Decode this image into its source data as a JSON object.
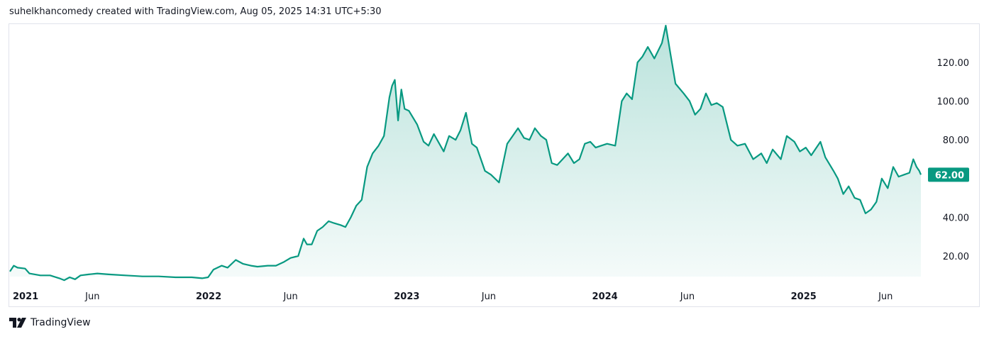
{
  "header": {
    "text": "suhelkhancomedy created with TradingView.com, Aug 05, 2025 14:31 UTC+5:30"
  },
  "footer": {
    "brand": "TradingView",
    "logo_icon": "tradingview-logo-icon"
  },
  "colors": {
    "line": "#089981",
    "fill_top": "#089981",
    "price_tag_bg": "#089981",
    "frame": "#e0e3eb"
  },
  "chart_data": {
    "type": "area",
    "title": "",
    "xlabel": "",
    "ylabel": "",
    "grid": false,
    "y_axis_position": "right",
    "ylim": [
      7,
      141
    ],
    "y_ticks": [
      "120.00",
      "100.00",
      "80.00",
      "40.00",
      "20.00"
    ],
    "x_range": [
      "2020-12-31",
      "2025-08-05"
    ],
    "x_ticks": [
      {
        "label": "2021",
        "date": "2021-01-01",
        "bold": true
      },
      {
        "label": "Jun",
        "date": "2021-06-01",
        "bold": false
      },
      {
        "label": "2022",
        "date": "2022-01-01",
        "bold": true
      },
      {
        "label": "Jun",
        "date": "2022-06-01",
        "bold": false
      },
      {
        "label": "2023",
        "date": "2023-01-01",
        "bold": true
      },
      {
        "label": "Jun",
        "date": "2023-06-01",
        "bold": false
      },
      {
        "label": "2024",
        "date": "2024-01-01",
        "bold": true
      },
      {
        "label": "Jun",
        "date": "2024-06-01",
        "bold": false
      },
      {
        "label": "2025",
        "date": "2025-01-01",
        "bold": true
      },
      {
        "label": "Jun",
        "date": "2025-06-01",
        "bold": false
      }
    ],
    "last_price_label": "62.00",
    "series": [
      {
        "values": [
          [
            "2020-12-31",
            12
          ],
          [
            "2021-01-07",
            15
          ],
          [
            "2021-01-14",
            14
          ],
          [
            "2021-01-28",
            13.5
          ],
          [
            "2021-02-05",
            11
          ],
          [
            "2021-02-25",
            10
          ],
          [
            "2021-03-15",
            10
          ],
          [
            "2021-04-01",
            8.5
          ],
          [
            "2021-04-10",
            7.5
          ],
          [
            "2021-04-20",
            9
          ],
          [
            "2021-04-30",
            8
          ],
          [
            "2021-05-10",
            10
          ],
          [
            "2021-05-25",
            10.5
          ],
          [
            "2021-06-10",
            11
          ],
          [
            "2021-07-01",
            10.5
          ],
          [
            "2021-08-01",
            10
          ],
          [
            "2021-09-01",
            9.5
          ],
          [
            "2021-10-01",
            9.5
          ],
          [
            "2021-11-01",
            9
          ],
          [
            "2021-12-01",
            9
          ],
          [
            "2021-12-20",
            8.5
          ],
          [
            "2021-12-31",
            9
          ],
          [
            "2022-01-10",
            13
          ],
          [
            "2022-01-25",
            15
          ],
          [
            "2022-02-05",
            14
          ],
          [
            "2022-02-20",
            18
          ],
          [
            "2022-03-05",
            16
          ],
          [
            "2022-03-20",
            15
          ],
          [
            "2022-04-01",
            14.5
          ],
          [
            "2022-04-20",
            15
          ],
          [
            "2022-05-05",
            15
          ],
          [
            "2022-05-20",
            17
          ],
          [
            "2022-06-01",
            19
          ],
          [
            "2022-06-15",
            20
          ],
          [
            "2022-06-25",
            29
          ],
          [
            "2022-07-01",
            26
          ],
          [
            "2022-07-10",
            26
          ],
          [
            "2022-07-20",
            33
          ],
          [
            "2022-07-30",
            35
          ],
          [
            "2022-08-10",
            38
          ],
          [
            "2022-08-20",
            37
          ],
          [
            "2022-09-01",
            36
          ],
          [
            "2022-09-10",
            35
          ],
          [
            "2022-09-20",
            40
          ],
          [
            "2022-09-30",
            46
          ],
          [
            "2022-10-10",
            49
          ],
          [
            "2022-10-20",
            66
          ],
          [
            "2022-10-30",
            73
          ],
          [
            "2022-11-10",
            77
          ],
          [
            "2022-11-20",
            82
          ],
          [
            "2022-11-30",
            102
          ],
          [
            "2022-12-05",
            108
          ],
          [
            "2022-12-10",
            111
          ],
          [
            "2022-12-16",
            90
          ],
          [
            "2022-12-22",
            106
          ],
          [
            "2022-12-28",
            96
          ],
          [
            "2023-01-05",
            95
          ],
          [
            "2023-01-20",
            88
          ],
          [
            "2023-02-01",
            79
          ],
          [
            "2023-02-10",
            77
          ],
          [
            "2023-02-20",
            83
          ],
          [
            "2023-03-10",
            74
          ],
          [
            "2023-03-20",
            82
          ],
          [
            "2023-04-01",
            80
          ],
          [
            "2023-04-10",
            85
          ],
          [
            "2023-04-20",
            94
          ],
          [
            "2023-05-01",
            78
          ],
          [
            "2023-05-10",
            76
          ],
          [
            "2023-05-25",
            64
          ],
          [
            "2023-06-05",
            62
          ],
          [
            "2023-06-20",
            58
          ],
          [
            "2023-07-05",
            78
          ],
          [
            "2023-07-15",
            82
          ],
          [
            "2023-07-25",
            86
          ],
          [
            "2023-08-05",
            81
          ],
          [
            "2023-08-15",
            80
          ],
          [
            "2023-08-25",
            86
          ],
          [
            "2023-09-05",
            82
          ],
          [
            "2023-09-15",
            80
          ],
          [
            "2023-09-25",
            68
          ],
          [
            "2023-10-05",
            67
          ],
          [
            "2023-10-15",
            70
          ],
          [
            "2023-10-25",
            73
          ],
          [
            "2023-11-05",
            68
          ],
          [
            "2023-11-15",
            70
          ],
          [
            "2023-11-25",
            78
          ],
          [
            "2023-12-05",
            79
          ],
          [
            "2023-12-15",
            76
          ],
          [
            "2023-12-25",
            77
          ],
          [
            "2024-01-05",
            78
          ],
          [
            "2024-01-20",
            77
          ],
          [
            "2024-02-01",
            100
          ],
          [
            "2024-02-10",
            104
          ],
          [
            "2024-02-20",
            101
          ],
          [
            "2024-03-01",
            120
          ],
          [
            "2024-03-10",
            123
          ],
          [
            "2024-03-20",
            128
          ],
          [
            "2024-04-01",
            122
          ],
          [
            "2024-04-15",
            130
          ],
          [
            "2024-04-22",
            139
          ],
          [
            "2024-05-01",
            124
          ],
          [
            "2024-05-10",
            109
          ],
          [
            "2024-05-25",
            104
          ],
          [
            "2024-06-05",
            100
          ],
          [
            "2024-06-15",
            93
          ],
          [
            "2024-06-25",
            96
          ],
          [
            "2024-07-05",
            104
          ],
          [
            "2024-07-15",
            98
          ],
          [
            "2024-07-25",
            99
          ],
          [
            "2024-08-05",
            97
          ],
          [
            "2024-08-20",
            80
          ],
          [
            "2024-09-01",
            77
          ],
          [
            "2024-09-15",
            78
          ],
          [
            "2024-09-30",
            70
          ],
          [
            "2024-10-15",
            73
          ],
          [
            "2024-10-25",
            68
          ],
          [
            "2024-11-05",
            75
          ],
          [
            "2024-11-20",
            70
          ],
          [
            "2024-12-01",
            82
          ],
          [
            "2024-12-15",
            79
          ],
          [
            "2024-12-25",
            74
          ],
          [
            "2025-01-05",
            76
          ],
          [
            "2025-01-15",
            72
          ],
          [
            "2025-02-01",
            79
          ],
          [
            "2025-02-10",
            71
          ],
          [
            "2025-02-25",
            64
          ],
          [
            "2025-03-05",
            60
          ],
          [
            "2025-03-15",
            52
          ],
          [
            "2025-03-25",
            56
          ],
          [
            "2025-04-05",
            50
          ],
          [
            "2025-04-15",
            49
          ],
          [
            "2025-04-25",
            42
          ],
          [
            "2025-05-05",
            44
          ],
          [
            "2025-05-15",
            48
          ],
          [
            "2025-05-25",
            60
          ],
          [
            "2025-06-05",
            55
          ],
          [
            "2025-06-15",
            66
          ],
          [
            "2025-06-25",
            61
          ],
          [
            "2025-07-05",
            62
          ],
          [
            "2025-07-15",
            63
          ],
          [
            "2025-07-22",
            70
          ],
          [
            "2025-07-28",
            66
          ],
          [
            "2025-08-02",
            64
          ],
          [
            "2025-08-05",
            62
          ]
        ]
      }
    ]
  }
}
